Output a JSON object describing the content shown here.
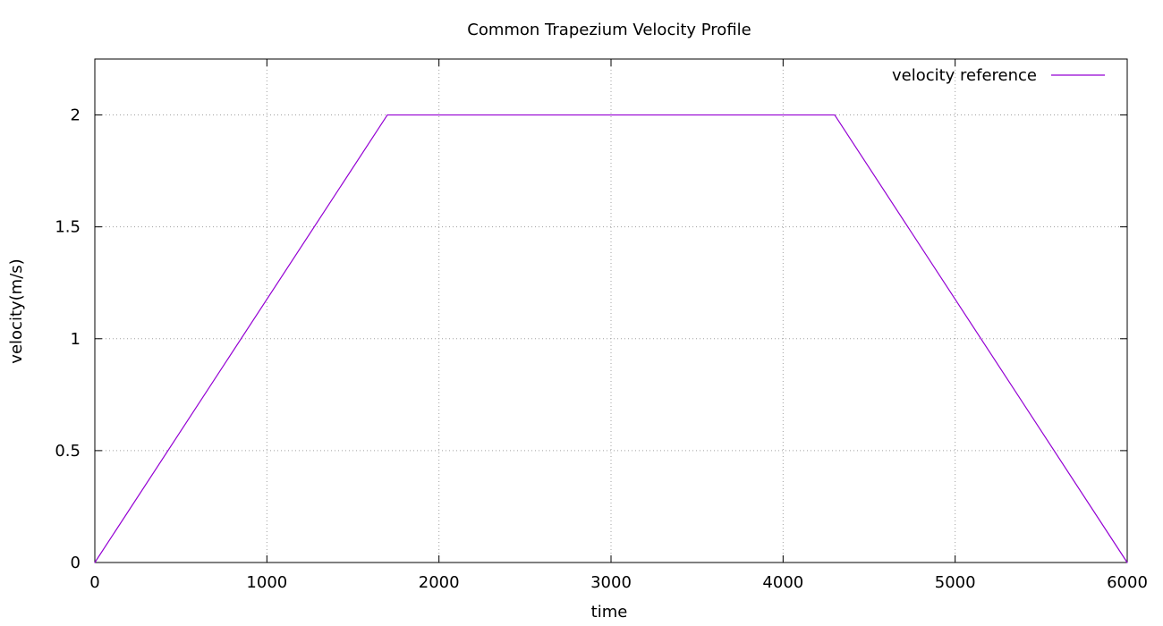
{
  "chart_data": {
    "type": "line",
    "title": "Common Trapezium Velocity Profile",
    "xlabel": "time",
    "ylabel": "velocity(m/s)",
    "xlim": [
      0,
      6000
    ],
    "ylim": [
      0,
      2.25
    ],
    "xticks": [
      0,
      1000,
      2000,
      3000,
      4000,
      5000,
      6000
    ],
    "yticks": [
      0,
      0.5,
      1,
      1.5,
      2
    ],
    "xtick_labels": [
      "0",
      "1000",
      "2000",
      "3000",
      "4000",
      "5000",
      "6000"
    ],
    "ytick_labels": [
      "0",
      "0.5",
      "1",
      "1.5",
      "2"
    ],
    "grid": true,
    "legend_position": "top-right",
    "series": [
      {
        "name": "velocity reference",
        "color": "#9400d3",
        "x": [
          0,
          1700,
          4300,
          6000
        ],
        "y": [
          0,
          2,
          2,
          0
        ]
      }
    ]
  }
}
